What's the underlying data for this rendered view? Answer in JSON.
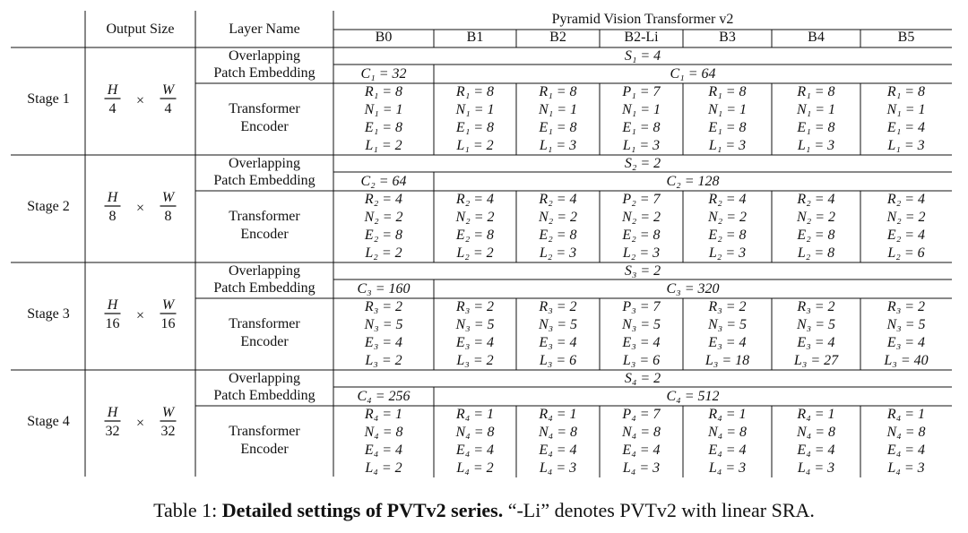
{
  "header": {
    "output_size": "Output Size",
    "layer_name": "Layer Name",
    "group": "Pyramid Vision Transformer v2",
    "models": [
      "B0",
      "B1",
      "B2",
      "B2-Li",
      "B3",
      "B4",
      "B5"
    ]
  },
  "layers": {
    "patch_embedding": [
      "Overlapping",
      "Patch Embedding"
    ],
    "transformer_encoder": [
      "Transformer",
      "Encoder"
    ]
  },
  "stages": [
    {
      "label": "Stage 1",
      "size_num_h": "H",
      "size_num_w": "W",
      "size_den": "4",
      "times": "×",
      "stride": "S₁ = 4",
      "channels_b0": "C₁ = 32",
      "channels_rest": "C₁ = 64",
      "encoder": [
        [
          "R₁ = 8",
          "N₁ = 1",
          "E₁ = 8",
          "L₁ = 2"
        ],
        [
          "R₁ = 8",
          "N₁ = 1",
          "E₁ = 8",
          "L₁ = 2"
        ],
        [
          "R₁ = 8",
          "N₁ = 1",
          "E₁ = 8",
          "L₁ = 3"
        ],
        [
          "P₁ = 7",
          "N₁ = 1",
          "E₁ = 8",
          "L₁ = 3"
        ],
        [
          "R₁ = 8",
          "N₁ = 1",
          "E₁ = 8",
          "L₁ = 3"
        ],
        [
          "R₁ = 8",
          "N₁ = 1",
          "E₁ = 8",
          "L₁ = 3"
        ],
        [
          "R₁ = 8",
          "N₁ = 1",
          "E₁ = 4",
          "L₁ = 3"
        ]
      ]
    },
    {
      "label": "Stage 2",
      "size_num_h": "H",
      "size_num_w": "W",
      "size_den": "8",
      "times": "×",
      "stride": "S₂ = 2",
      "channels_b0": "C₂ = 64",
      "channels_rest": "C₂ = 128",
      "encoder": [
        [
          "R₂ = 4",
          "N₂ = 2",
          "E₂ = 8",
          "L₂ = 2"
        ],
        [
          "R₂ = 4",
          "N₂ = 2",
          "E₂ = 8",
          "L₂ = 2"
        ],
        [
          "R₂ = 4",
          "N₂ = 2",
          "E₂ = 8",
          "L₂ = 3"
        ],
        [
          "P₂ = 7",
          "N₂ = 2",
          "E₂ = 8",
          "L₂ = 3"
        ],
        [
          "R₂ = 4",
          "N₂ = 2",
          "E₂ = 8",
          "L₂ = 3"
        ],
        [
          "R₂ = 4",
          "N₂ = 2",
          "E₂ = 8",
          "L₂ = 8"
        ],
        [
          "R₂ = 4",
          "N₂ = 2",
          "E₂ = 4",
          "L₂ = 6"
        ]
      ]
    },
    {
      "label": "Stage 3",
      "size_num_h": "H",
      "size_num_w": "W",
      "size_den": "16",
      "times": "×",
      "stride": "S₃ = 2",
      "channels_b0": "C₃ = 160",
      "channels_rest": "C₃ = 320",
      "encoder": [
        [
          "R₃ = 2",
          "N₃ = 5",
          "E₃ = 4",
          "L₃ = 2"
        ],
        [
          "R₃ = 2",
          "N₃ = 5",
          "E₃ = 4",
          "L₃ = 2"
        ],
        [
          "R₃ = 2",
          "N₃ = 5",
          "E₃ = 4",
          "L₃ = 6"
        ],
        [
          "P₃ = 7",
          "N₃ = 5",
          "E₃ = 4",
          "L₃ = 6"
        ],
        [
          "R₃ = 2",
          "N₃ = 5",
          "E₃ = 4",
          "L₃ = 18"
        ],
        [
          "R₃ = 2",
          "N₃ = 5",
          "E₃ = 4",
          "L₃ = 27"
        ],
        [
          "R₃ = 2",
          "N₃ = 5",
          "E₃ = 4",
          "L₃ = 40"
        ]
      ]
    },
    {
      "label": "Stage 4",
      "size_num_h": "H",
      "size_num_w": "W",
      "size_den": "32",
      "times": "×",
      "stride": "S₄ = 2",
      "channels_b0": "C₄ = 256",
      "channels_rest": "C₄ = 512",
      "encoder": [
        [
          "R₄ = 1",
          "N₄ = 8",
          "E₄ = 4",
          "L₄ = 2"
        ],
        [
          "R₄ = 1",
          "N₄ = 8",
          "E₄ = 4",
          "L₄ = 2"
        ],
        [
          "R₄ = 1",
          "N₄ = 8",
          "E₄ = 4",
          "L₄ = 3"
        ],
        [
          "P₄ = 7",
          "N₄ = 8",
          "E₄ = 4",
          "L₄ = 3"
        ],
        [
          "R₄ = 1",
          "N₄ = 8",
          "E₄ = 4",
          "L₄ = 3"
        ],
        [
          "R₄ = 1",
          "N₄ = 8",
          "E₄ = 4",
          "L₄ = 3"
        ],
        [
          "R₄ = 1",
          "N₄ = 8",
          "E₄ = 4",
          "L₄ = 3"
        ]
      ]
    }
  ],
  "caption": {
    "prefix": "Table 1: ",
    "bold": "Detailed settings of PVTv2 series.",
    "rest": " “-Li” denotes PVTv2 with linear SRA."
  }
}
